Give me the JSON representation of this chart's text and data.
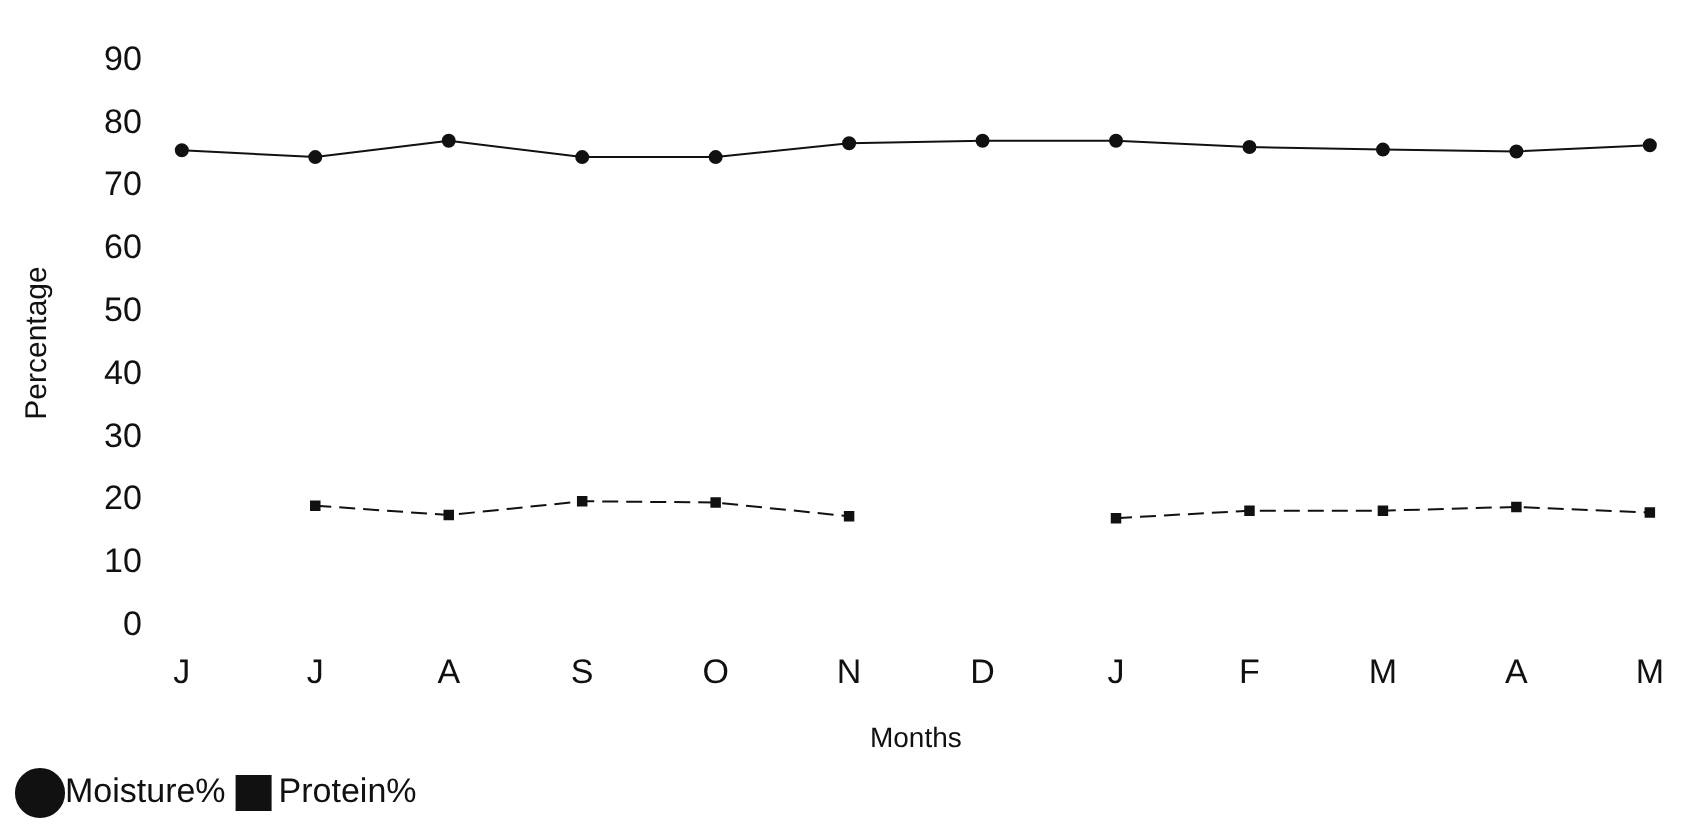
{
  "chart_data": {
    "type": "line",
    "xlabel": "Months",
    "ylabel": "Percentage",
    "categories": [
      "J",
      "J",
      "A",
      "S",
      "O",
      "N",
      "D",
      "J",
      "F",
      "M",
      "A",
      "M"
    ],
    "series": [
      {
        "name": "Moisture%",
        "color": "#111111",
        "marker": "circle",
        "line_style": "solid",
        "values": [
          75.7,
          74.6,
          77.2,
          74.6,
          74.6,
          76.8,
          77.2,
          77.2,
          76.2,
          75.8,
          75.5,
          76.5
        ]
      },
      {
        "name": "Protein%",
        "color": "#111111",
        "marker": "square",
        "line_style": "dashed",
        "values": [
          null,
          19.1,
          17.6,
          19.8,
          19.6,
          17.4,
          null,
          17.1,
          18.3,
          18.3,
          18.9,
          18.0
        ]
      }
    ],
    "ylim": [
      0,
      90
    ],
    "yticks": [
      0,
      10,
      20,
      30,
      40,
      50,
      60,
      70,
      80,
      90
    ],
    "grid": false,
    "legend": "bottom left"
  }
}
